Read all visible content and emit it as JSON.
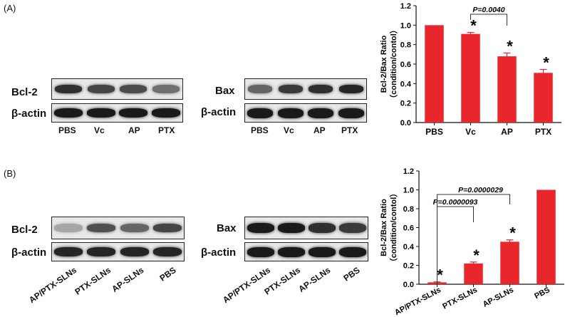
{
  "panel_a": {
    "label": "(A)",
    "blot1": {
      "rows": [
        "Bcl-2",
        "β-actin"
      ],
      "lanes": [
        "PBS",
        "Vc",
        "AP",
        "PTX"
      ],
      "band_intensity_top": [
        0.85,
        0.75,
        0.72,
        0.55
      ],
      "band_intensity_bottom": [
        0.95,
        0.95,
        0.95,
        0.95
      ]
    },
    "blot2": {
      "rows": [
        "Bax",
        "β-actin"
      ],
      "lanes": [
        "PBS",
        "Vc",
        "AP",
        "PTX"
      ],
      "band_intensity_top": [
        0.6,
        0.8,
        0.85,
        0.9
      ],
      "band_intensity_bottom": [
        0.95,
        0.95,
        0.95,
        0.95
      ]
    }
  },
  "panel_b": {
    "label": "(B)",
    "blot1": {
      "rows": [
        "Bcl-2",
        "β-actin"
      ],
      "lanes": [
        "AP/PTX-SLNs",
        "PTX-SLNs",
        "AP-SLNs",
        "PBS"
      ],
      "band_intensity_top": [
        0.3,
        0.7,
        0.6,
        0.75
      ],
      "band_intensity_bottom": [
        0.9,
        0.9,
        0.9,
        0.9
      ]
    },
    "blot2": {
      "rows": [
        "Bax",
        "β-actin"
      ],
      "lanes": [
        "AP/PTX-SLNs",
        "PTX-SLNs",
        "AP-SLNs",
        "PBS"
      ],
      "band_intensity_top": [
        0.95,
        0.95,
        0.85,
        0.8
      ],
      "band_intensity_bottom": [
        0.95,
        0.95,
        0.95,
        0.95
      ]
    }
  },
  "chart_data": [
    {
      "type": "bar",
      "categories": [
        "PBS",
        "Vc",
        "AP",
        "PTX"
      ],
      "values": [
        1.0,
        0.91,
        0.68,
        0.51
      ],
      "errors": [
        0,
        0.015,
        0.035,
        0.035
      ],
      "significance": [
        "",
        "*",
        "*",
        "*"
      ],
      "bracket": {
        "from": "Vc",
        "to": "AP",
        "label": "P=0.0040"
      },
      "ylabel_lines": [
        "Bcl-2/Bax Ratio",
        "（condition/contol）"
      ],
      "ylim": [
        0,
        1.2
      ],
      "yticks": [
        "0.0",
        "0.2",
        "0.4",
        "0.6",
        "0.8",
        "1.0",
        "1.2"
      ],
      "bar_color": "#e8262c"
    },
    {
      "type": "bar",
      "categories": [
        "AP/PTX-SLNs",
        "PTX-SLNs",
        "AP-SLNs",
        "PBS"
      ],
      "values": [
        0.02,
        0.22,
        0.45,
        1.0
      ],
      "errors": [
        0.005,
        0.015,
        0.02,
        0
      ],
      "significance": [
        "*",
        "*",
        "*",
        ""
      ],
      "brackets": [
        {
          "from": "AP/PTX-SLNs",
          "to": "PTX-SLNs",
          "label": "P=0.0000093"
        },
        {
          "from": "AP/PTX-SLNs",
          "to": "AP-SLNs",
          "label": "P=0.0000029"
        }
      ],
      "ylabel_lines": [
        "Bcl-2/Bax Ratio",
        "（condition/contol）"
      ],
      "ylim": [
        0,
        1.2
      ],
      "yticks": [
        "0.0",
        "0.2",
        "0.4",
        "0.6",
        "0.8",
        "1.0",
        "1.2"
      ],
      "bar_color": "#e8262c"
    }
  ]
}
